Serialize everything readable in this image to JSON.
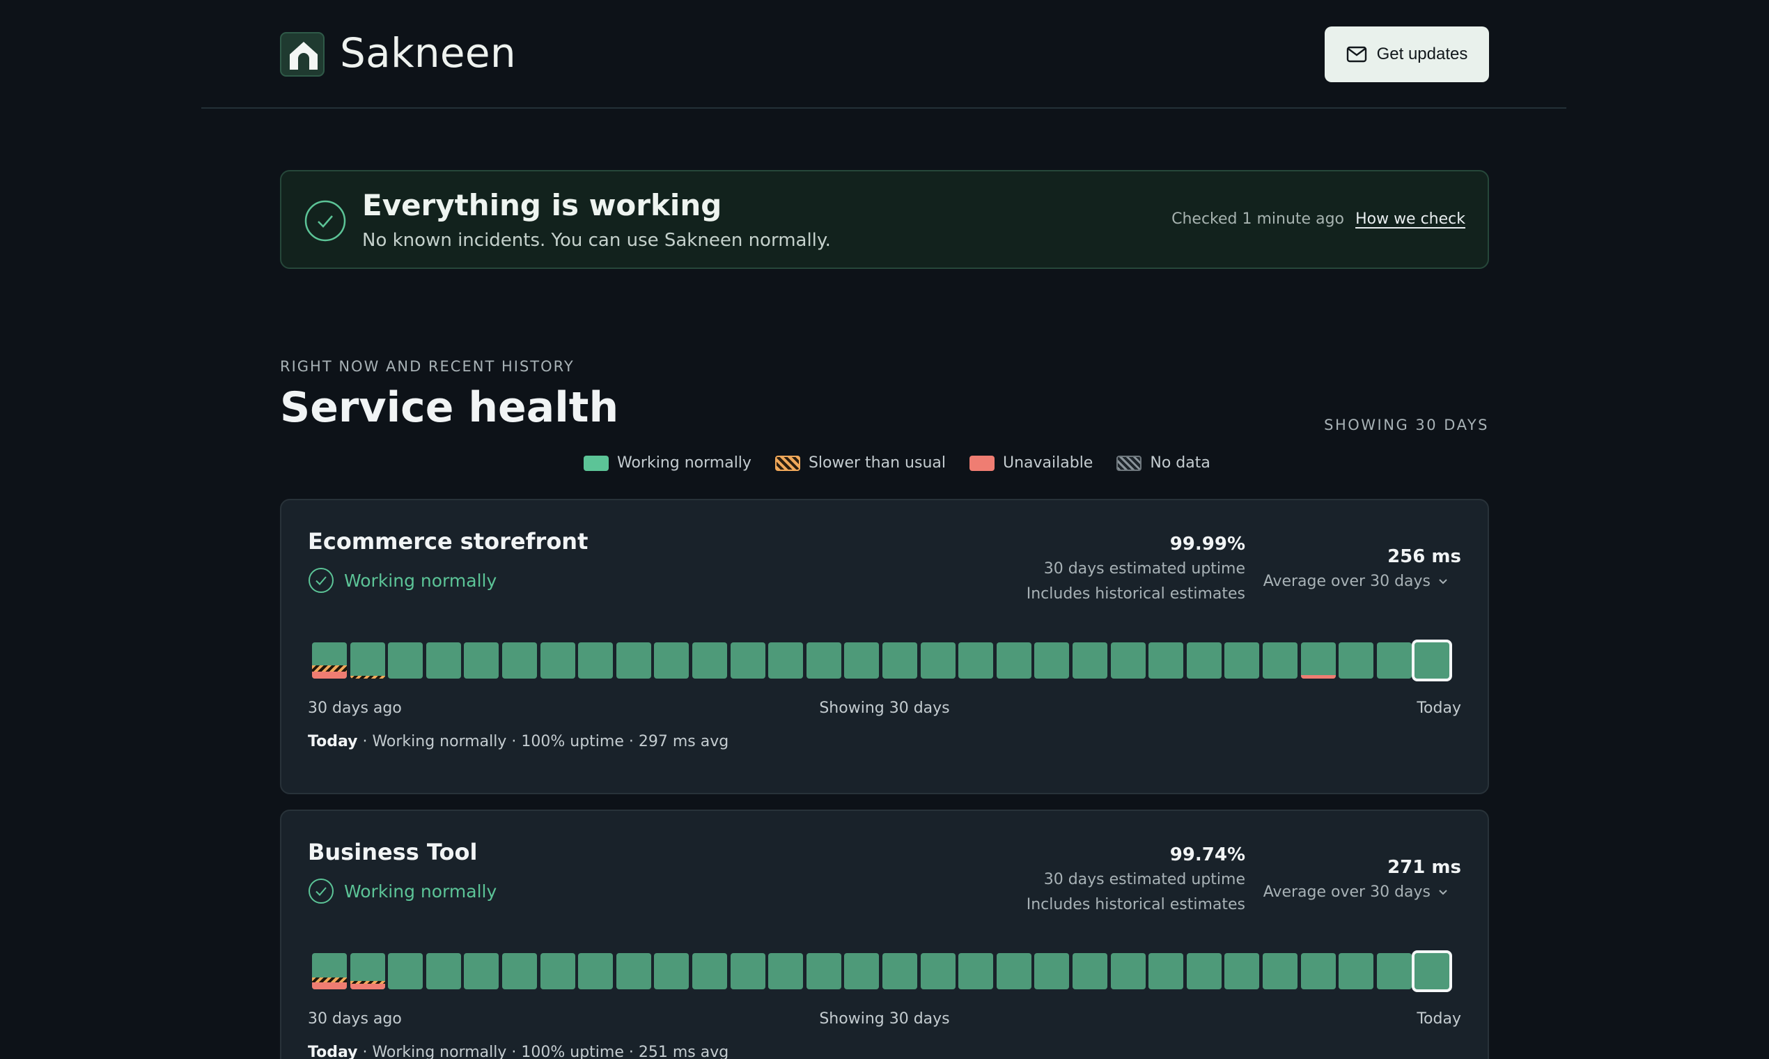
{
  "brand": {
    "name": "Sakneen",
    "icon": "house-icon"
  },
  "header": {
    "updates_label": "Get updates",
    "updates_icon": "mail-icon"
  },
  "banner": {
    "title": "Everything is working",
    "subtitle": "No known incidents. You can use Sakneen normally.",
    "checked": "Checked 1 minute ago",
    "how_link": "How we check",
    "icon": "check-circle-icon"
  },
  "section": {
    "eyebrow": "RIGHT NOW AND RECENT HISTORY",
    "title": "Service health",
    "showing": "SHOWING 30 DAYS"
  },
  "legend": [
    {
      "label": "Working normally",
      "kind": "ok",
      "color": "#5cc497"
    },
    {
      "label": "Slower than usual",
      "kind": "slow",
      "color": "#f0a85a"
    },
    {
      "label": "Unavailable",
      "kind": "down",
      "color": "#ef7d72"
    },
    {
      "label": "No data",
      "kind": "nodata",
      "color": "#8a939a"
    }
  ],
  "services": [
    {
      "name": "Ecommerce storefront",
      "status": "Working normally",
      "uptime": "99.99%",
      "uptime_label": "30 days estimated uptime",
      "uptime_note": "Includes historical estimates",
      "latency": "256 ms",
      "latency_label": "Average over 30 days",
      "axis_start": "30 days ago",
      "axis_mid": "Showing 30 days",
      "axis_end": "Today",
      "today_label": "Today",
      "today_detail": " · Working normally · 100% uptime · 297 ms avg",
      "days": [
        {
          "slow": 0.35,
          "down": 0.2
        },
        {
          "slow": 0.15,
          "down": 0
        },
        {},
        {},
        {},
        {},
        {},
        {},
        {},
        {},
        {},
        {},
        {},
        {},
        {},
        {},
        {},
        {},
        {},
        {},
        {},
        {},
        {},
        {},
        {},
        {},
        {
          "slow": 0,
          "down": 0.1
        },
        {},
        {},
        {}
      ]
    },
    {
      "name": "Business Tool",
      "status": "Working normally",
      "uptime": "99.74%",
      "uptime_label": "30 days estimated uptime",
      "uptime_note": "Includes historical estimates",
      "latency": "271 ms",
      "latency_label": "Average over 30 days",
      "axis_start": "30 days ago",
      "axis_mid": "Showing 30 days",
      "axis_end": "Today",
      "today_label": "Today",
      "today_detail": " · Working normally · 100% uptime · 251 ms avg",
      "days": [
        {
          "slow": 0.3,
          "down": 0.2
        },
        {
          "slow": 0.15,
          "down": 0.15
        },
        {},
        {},
        {},
        {},
        {},
        {},
        {},
        {},
        {},
        {},
        {},
        {},
        {},
        {},
        {},
        {},
        {},
        {},
        {},
        {},
        {},
        {},
        {},
        {},
        {},
        {},
        {},
        {}
      ]
    }
  ]
}
